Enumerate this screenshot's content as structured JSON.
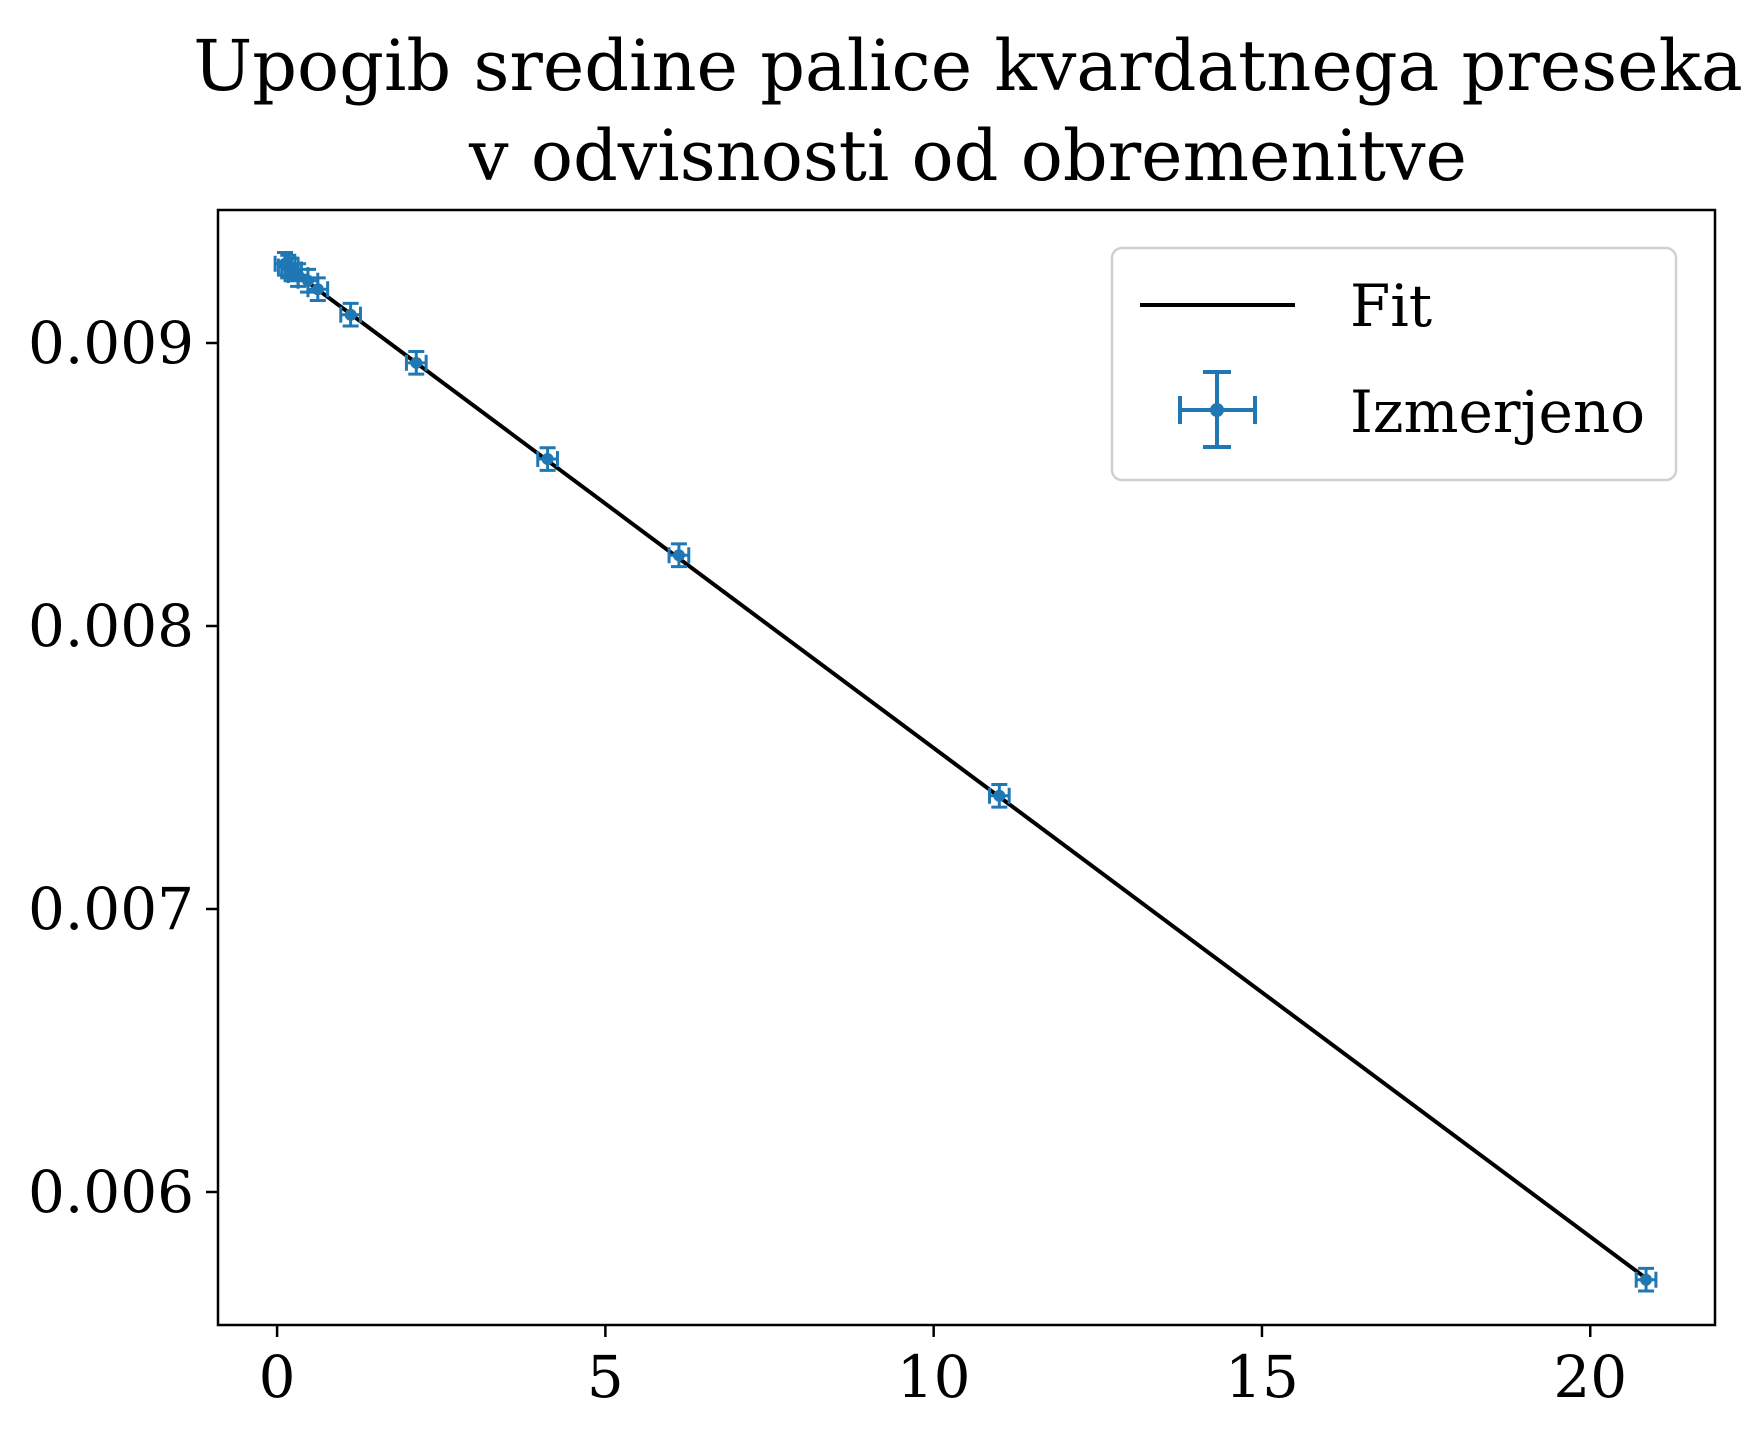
{
  "chart_data": {
    "type": "scatter",
    "title": [
      "Upogib sredine palice kvardatnega preseka",
      "v odvisnosti od obremenitve"
    ],
    "xlabel": "",
    "ylabel": "",
    "xlim": [
      -0.9,
      21.9
    ],
    "ylim": [
      0.00553,
      0.00947
    ],
    "xticks": [
      0,
      5,
      10,
      15,
      20
    ],
    "xtick_labels": [
      "0",
      "5",
      "10",
      "15",
      "20"
    ],
    "yticks": [
      0.006,
      0.007,
      0.008,
      0.009
    ],
    "ytick_labels": [
      "0.006",
      "0.007",
      "0.008",
      "0.009"
    ],
    "grid": false,
    "legend_position": "top-right",
    "series": [
      {
        "name": "Fit",
        "kind": "line",
        "color": "#000000",
        "x": [
          0.12,
          20.85
        ],
        "y": [
          0.009275,
          0.005695
        ]
      },
      {
        "name": "Izmerjeno",
        "kind": "errorbar",
        "color": "#1f77b4",
        "x": [
          0.12,
          0.17,
          0.22,
          0.32,
          0.47,
          0.62,
          1.12,
          2.12,
          4.12,
          6.12,
          11.0,
          20.85
        ],
        "y": [
          0.00928,
          0.00927,
          0.00926,
          0.00924,
          0.00922,
          0.00919,
          0.0091,
          0.00893,
          0.00859,
          0.00825,
          0.0074,
          0.00569
        ],
        "xerr": 0.15,
        "yerr": 4e-05
      }
    ]
  }
}
